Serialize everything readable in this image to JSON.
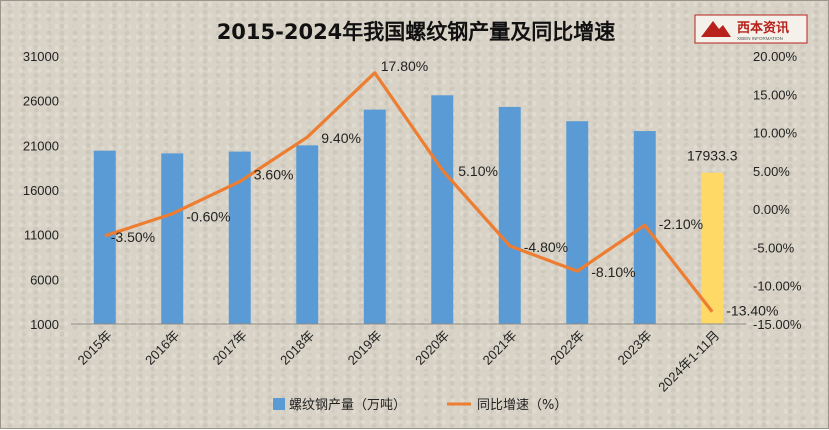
{
  "chart_data": {
    "type": "bar+line",
    "title": "2015-2024年我国螺纹钢产量及同比增速",
    "categories": [
      "2015年",
      "2016年",
      "2017年",
      "2018年",
      "2019年",
      "2020年",
      "2021年",
      "2022年",
      "2023年",
      "2024年1-11月"
    ],
    "series": [
      {
        "name": "螺纹钢产量（万吨）",
        "type": "bar",
        "axis": "left",
        "values": [
          20400,
          20100,
          20300,
          21000,
          25000,
          26600,
          25300,
          23700,
          22600,
          17933.3
        ],
        "colors": [
          "#5b9bd5",
          "#5b9bd5",
          "#5b9bd5",
          "#5b9bd5",
          "#5b9bd5",
          "#5b9bd5",
          "#5b9bd5",
          "#5b9bd5",
          "#5b9bd5",
          "#ffd966"
        ]
      },
      {
        "name": "同比增速（%）",
        "type": "line",
        "axis": "right",
        "color": "#ed7d31",
        "values": [
          -3.5,
          -0.6,
          3.6,
          9.4,
          17.8,
          5.1,
          -4.8,
          -8.1,
          -2.1,
          -13.4
        ]
      }
    ],
    "left_axis": {
      "min": 1000,
      "max": 31000,
      "ticks": [
        "1000",
        "6000",
        "11000",
        "16000",
        "21000",
        "26000",
        "31000"
      ]
    },
    "right_axis": {
      "min": -15,
      "max": 20,
      "ticks": [
        "-15.00%",
        "-10.00%",
        "-5.00%",
        "0.00%",
        "5.00%",
        "10.00%",
        "15.00%",
        "20.00%"
      ]
    },
    "bar_data_labels": [
      "",
      "",
      "",
      "",
      "",
      "",
      "",
      "",
      "",
      "17933.3"
    ],
    "line_data_labels": [
      "-3.50%",
      "-0.60%",
      "3.60%",
      "9.40%",
      "17.80%",
      "5.10%",
      "-4.80%",
      "-8.10%",
      "-2.10%",
      "-13.40%"
    ],
    "legend": {
      "placement": "bottom",
      "items": [
        "螺纹钢产量（万吨）",
        "同比增速（%）"
      ]
    }
  },
  "logo": {
    "text": "西本资讯",
    "subtext": "XIBEN INFORMATION"
  }
}
